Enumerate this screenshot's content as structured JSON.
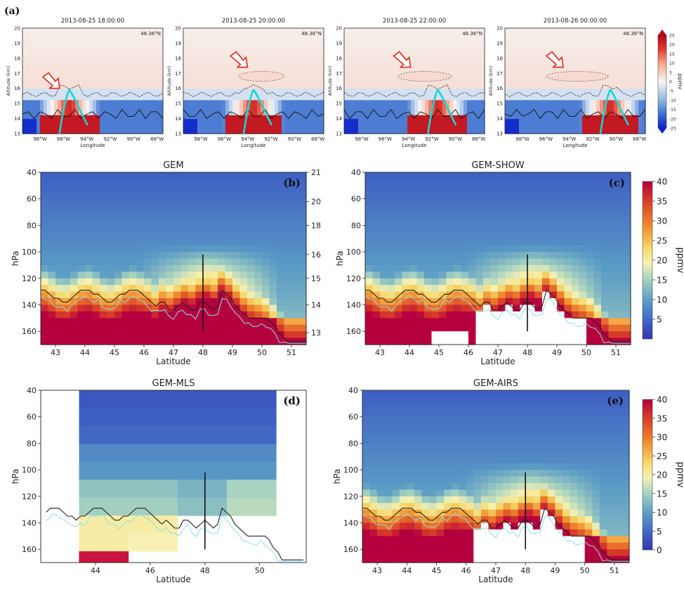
{
  "figure": {
    "panel_a_label": "(a)"
  },
  "chart_data": [
    {
      "id": "a",
      "type": "heatmap",
      "panel_label": "(a)",
      "ylabel": "Altitude (km)",
      "xlabel": "Longitude",
      "ylim": [
        13,
        20
      ],
      "yticks": [
        "20",
        "19",
        "18",
        "17",
        "16",
        "15",
        "14",
        "13"
      ],
      "xticks": [
        "98°W",
        "96°W",
        "94°W",
        "92°W",
        "90°W",
        "88°W"
      ],
      "latitude_label": "48.36°N",
      "colorbar": {
        "label": "ppmv",
        "range": [
          -25,
          25
        ],
        "ticks": [
          "25",
          "20",
          "15",
          "10",
          "5",
          "0",
          "-5",
          "-10",
          "-15",
          "-20",
          "-25"
        ]
      },
      "subplots": [
        {
          "title": "2013-08-25 18:00:00",
          "plume_lon": -95.5,
          "arrow_lon": -96.8
        },
        {
          "title": "2013-08-25 20:00:00",
          "plume_lon": -93.5,
          "arrow_lon": -94.5
        },
        {
          "title": "2013-08-25 22:00:00",
          "plume_lon": -91.5,
          "arrow_lon": -94.3
        },
        {
          "title": "2013-08-26 00:00:00",
          "plume_lon": -90.5,
          "arrow_lon": -95.0
        }
      ]
    },
    {
      "id": "b",
      "type": "heatmap",
      "title": "GEM",
      "panel_label": "(b)",
      "xlabel": "Latitude",
      "ylabel": "hPa",
      "xlim": [
        42.5,
        51.5
      ],
      "ylim": [
        170,
        40
      ],
      "xticks": [
        "43",
        "44",
        "45",
        "46",
        "47",
        "48",
        "49",
        "50",
        "51"
      ],
      "yticks": [
        "40",
        "60",
        "80",
        "100",
        "120",
        "140",
        "160"
      ],
      "right_yticks": [
        "21",
        "20",
        "18",
        "16",
        "15",
        "14",
        "13"
      ],
      "tropopause_hpa": [
        130,
        130,
        128,
        133,
        135,
        133,
        130,
        130,
        134,
        130,
        130,
        128,
        140,
        132,
        130,
        130,
        133,
        140,
        145,
        143,
        140,
        145,
        150,
        152,
        155,
        158,
        160,
        165,
        168
      ],
      "enhanced_peak_lat": 48.2
    },
    {
      "id": "c",
      "type": "heatmap",
      "title": "GEM-SHOW",
      "panel_label": "(c)",
      "xlabel": "Latitude",
      "ylabel": "hPa",
      "xlim": [
        42.5,
        51.5
      ],
      "ylim": [
        170,
        40
      ],
      "xticks": [
        "43",
        "44",
        "45",
        "46",
        "47",
        "48",
        "49",
        "50",
        "51"
      ],
      "yticks": [
        "40",
        "60",
        "80",
        "100",
        "120",
        "140",
        "160"
      ],
      "colorbar": {
        "label": "ppmv",
        "range": [
          0,
          40
        ],
        "ticks": [
          "40",
          "35",
          "30",
          "25",
          "20",
          "15",
          "10",
          "5"
        ]
      }
    },
    {
      "id": "d",
      "type": "heatmap",
      "title": "GEM-MLS",
      "panel_label": "(d)",
      "xlabel": "Latitude",
      "ylabel": "hPa",
      "xlim": [
        42.0,
        51.7
      ],
      "ylim": [
        170,
        40
      ],
      "xticks": [
        "44",
        "46",
        "48",
        "50"
      ],
      "yticks": [
        "40",
        "60",
        "80",
        "100",
        "120",
        "140",
        "160"
      ]
    },
    {
      "id": "e",
      "type": "heatmap",
      "title": "GEM-AIRS",
      "panel_label": "(e)",
      "xlabel": "Latitude",
      "ylabel": "hPa",
      "xlim": [
        42.5,
        51.5
      ],
      "ylim": [
        170,
        40
      ],
      "xticks": [
        "43",
        "44",
        "45",
        "46",
        "47",
        "48",
        "49",
        "50",
        "51"
      ],
      "yticks": [
        "40",
        "60",
        "80",
        "100",
        "120",
        "140",
        "160"
      ],
      "colorbar": {
        "label": "ppmv",
        "range": [
          0,
          40
        ],
        "ticks": [
          "40",
          "35",
          "30",
          "25",
          "20",
          "15",
          "10",
          "5",
          "0"
        ]
      }
    }
  ]
}
